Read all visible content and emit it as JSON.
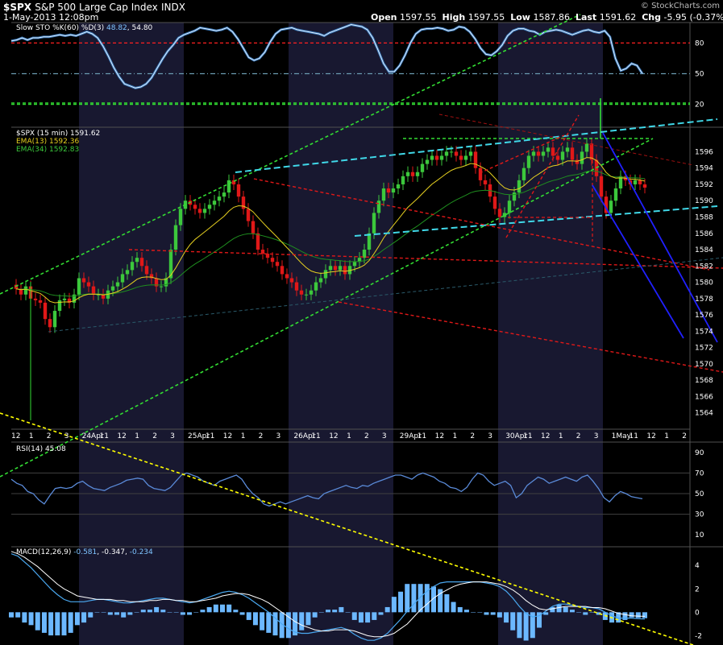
{
  "header": {
    "symbol": "$SPX",
    "name": "S&P 500 Large Cap Index",
    "exchange": "INDX",
    "datetime": "1-May-2013 12:08pm",
    "open_label": "Open",
    "open": "1597.55",
    "high_label": "High",
    "high": "1597.55",
    "low_label": "Low",
    "low": "1587.86",
    "last_label": "Last",
    "last": "1591.62",
    "chg_label": "Chg",
    "chg": "-5.95 (-0.37%)",
    "chg_arrow": "▼",
    "credit": "© StockCharts.com"
  },
  "colors": {
    "background": "#000000",
    "session_shade": "#181830",
    "panel_border": "#505050",
    "up_candle": "#3cc83c",
    "down_candle": "#e01818",
    "ema13": "#e6d020",
    "ema34": "#1f8f1f",
    "sto_line": "#7ec4ff",
    "trend_green": "#33dd33",
    "trend_red": "#e01818",
    "trend_cyan": "#40d8e8",
    "trend_blue": "#2020ff",
    "trend_yellow": "#ffff00",
    "rsi_line": "#5a8ad8",
    "macd_hist": "#6cb8ff"
  },
  "chart_data": [
    {
      "type": "line",
      "panel": "stochastic",
      "legend": "Slow STO %K(60) %D(3)",
      "k_value": "48.82",
      "d_value": "54.80",
      "ylim": [
        0,
        100
      ],
      "yticks": [
        80,
        50,
        20
      ],
      "reference_lines": [
        {
          "value": 80,
          "color": "#ff2020",
          "style": "dashed"
        },
        {
          "value": 50,
          "color": "#6a9ab0",
          "style": "dashdot"
        },
        {
          "value": 20,
          "color": "#33dd33",
          "style": "dashed"
        }
      ],
      "series": [
        {
          "values": [
            82,
            83,
            85,
            83,
            85,
            85,
            86,
            86,
            87,
            88,
            87,
            88,
            87,
            89,
            91,
            89,
            85,
            77,
            67,
            56,
            47,
            40,
            38,
            36,
            37,
            40,
            46,
            55,
            64,
            72,
            78,
            85,
            88,
            90,
            92,
            95,
            94,
            93,
            92,
            93,
            95,
            91,
            84,
            75,
            66,
            63,
            65,
            71,
            81,
            89,
            93,
            94,
            95,
            93,
            92,
            91,
            90,
            89,
            87,
            90,
            92,
            94,
            96,
            98,
            97,
            96,
            93,
            85,
            73,
            60,
            52,
            52,
            58,
            68,
            80,
            89,
            93,
            94,
            94,
            95,
            94,
            92,
            93,
            96,
            95,
            91,
            84,
            75,
            69,
            68,
            72,
            78,
            87,
            92,
            94,
            94,
            92,
            91,
            88,
            91,
            92,
            93,
            92,
            90,
            88,
            90,
            92,
            93,
            91,
            90,
            92,
            86,
            65,
            53,
            55,
            60,
            58,
            50
          ]
        }
      ]
    },
    {
      "type": "bar",
      "subtype": "candlestick",
      "panel": "price",
      "legend": "$SPX (15 min) 1591.62",
      "overlays": [
        {
          "name": "EMA(13)",
          "value": "1592.36"
        },
        {
          "name": "EMA(34)",
          "value": "1592.83"
        }
      ],
      "ylim": [
        1562,
        1599
      ],
      "yticks": [
        1564,
        1566,
        1568,
        1570,
        1572,
        1574,
        1576,
        1578,
        1580,
        1582,
        1584,
        1586,
        1588,
        1590,
        1592,
        1594,
        1596
      ],
      "x_tick_labels": [
        "12",
        "1",
        "2",
        "3",
        "24Apr",
        "11",
        "12",
        "1",
        "2",
        "3",
        "25Apr",
        "11",
        "12",
        "1",
        "2",
        "3",
        "26Apr",
        "11",
        "12",
        "1",
        "2",
        "3",
        "29Apr",
        "11",
        "12",
        "1",
        "2",
        "3",
        "30Apr",
        "11",
        "12",
        "1",
        "2",
        "3",
        "1May",
        "11",
        "12",
        "1",
        "2"
      ],
      "close": [
        1579.2,
        1578.5,
        1579.5,
        1578.0,
        1577.8,
        1577.5,
        1575.5,
        1574.5,
        1576.5,
        1577.8,
        1578.0,
        1577.5,
        1578.5,
        1580.5,
        1580.0,
        1579.5,
        1578.5,
        1578.5,
        1578.0,
        1579.0,
        1579.5,
        1580.0,
        1581.0,
        1581.5,
        1582.5,
        1583.0,
        1582.0,
        1581.0,
        1580.5,
        1579.5,
        1579.5,
        1580.5,
        1584.0,
        1587.0,
        1589.0,
        1590.0,
        1589.5,
        1589.0,
        1588.5,
        1589.0,
        1589.5,
        1590.0,
        1590.5,
        1591.0,
        1592.5,
        1592.0,
        1590.5,
        1589.0,
        1587.5,
        1586.0,
        1584.0,
        1583.5,
        1583.0,
        1582.5,
        1582.0,
        1581.0,
        1580.5,
        1580.0,
        1579.0,
        1578.5,
        1578.5,
        1579.0,
        1580.0,
        1580.5,
        1581.5,
        1582.0,
        1581.5,
        1582.0,
        1581.0,
        1582.0,
        1582.5,
        1583.0,
        1584.0,
        1586.0,
        1588.5,
        1590.0,
        1591.5,
        1591.0,
        1591.5,
        1592.0,
        1593.0,
        1593.5,
        1593.0,
        1593.5,
        1594.5,
        1595.0,
        1595.5,
        1595.0,
        1595.5,
        1596.0,
        1596.0,
        1595.5,
        1595.0,
        1595.5,
        1596.0,
        1594.0,
        1592.5,
        1592.0,
        1590.5,
        1589.0,
        1588.0,
        1588.5,
        1590.0,
        1591.0,
        1592.5,
        1594.0,
        1595.5,
        1596.0,
        1595.5,
        1596.0,
        1596.5,
        1595.5,
        1595.0,
        1596.0,
        1596.5,
        1595.0,
        1594.5,
        1596.0,
        1597.0,
        1595.0,
        1593.0,
        1590.5,
        1588.5,
        1590.0,
        1591.5,
        1593.0,
        1592.5,
        1592.0,
        1592.5,
        1592.0,
        1591.6
      ]
    },
    {
      "type": "line",
      "panel": "rsi",
      "legend": "RSI(14) 45.08",
      "ylim": [
        0,
        100
      ],
      "yticks": [
        90,
        70,
        50,
        30,
        10
      ],
      "series": [
        {
          "values": [
            64,
            60,
            58,
            52,
            50,
            44,
            40,
            48,
            55,
            56,
            55,
            56,
            60,
            62,
            58,
            55,
            54,
            53,
            56,
            58,
            60,
            63,
            64,
            65,
            64,
            58,
            55,
            54,
            53,
            56,
            62,
            68,
            70,
            68,
            66,
            62,
            60,
            58,
            62,
            64,
            66,
            68,
            64,
            56,
            50,
            46,
            40,
            38,
            40,
            42,
            40,
            42,
            44,
            46,
            48,
            46,
            45,
            50,
            52,
            54,
            56,
            58,
            56,
            55,
            58,
            57,
            60,
            62,
            64,
            66,
            68,
            68,
            66,
            64,
            68,
            70,
            68,
            66,
            62,
            60,
            56,
            55,
            52,
            56,
            64,
            70,
            68,
            62,
            58,
            60,
            62,
            58,
            46,
            50,
            58,
            62,
            66,
            64,
            60,
            62,
            64,
            66,
            64,
            62,
            66,
            68,
            62,
            55,
            46,
            42,
            48,
            52,
            50,
            47,
            46,
            45
          ]
        }
      ]
    },
    {
      "type": "line",
      "panel": "macd",
      "legend": "MACD(12,26,9)",
      "macd_value": "-0.581",
      "signal_value": "-0.347",
      "hist_value": "-0.234",
      "ylim": [
        -2.8,
        5.6
      ],
      "yticks": [
        4,
        2,
        0,
        -2
      ],
      "series": [
        {
          "name": "MACD(12,26,9)",
          "values": [
            5.0,
            4.8,
            4.3,
            3.8,
            3.2,
            2.6,
            2.0,
            1.5,
            1.1,
            0.9,
            0.9,
            0.9,
            1.0,
            1.1,
            1.1,
            1.0,
            0.9,
            0.8,
            0.8,
            0.9,
            1.0,
            1.1,
            1.2,
            1.2,
            1.1,
            1.0,
            0.9,
            0.8,
            0.9,
            1.1,
            1.3,
            1.5,
            1.7,
            1.8,
            1.7,
            1.5,
            1.2,
            0.8,
            0.4,
            0.0,
            -0.5,
            -1.0,
            -1.4,
            -1.7,
            -1.8,
            -1.8,
            -1.7,
            -1.6,
            -1.5,
            -1.4,
            -1.3,
            -1.5,
            -1.9,
            -2.2,
            -2.4,
            -2.4,
            -2.2,
            -1.8,
            -1.2,
            -0.6,
            0.1,
            0.7,
            1.3,
            1.8,
            2.2,
            2.5,
            2.6,
            2.6,
            2.6,
            2.6,
            2.6,
            2.6,
            2.5,
            2.4,
            2.2,
            1.8,
            1.2,
            0.5,
            -0.1,
            -0.4,
            -0.3,
            0.1,
            0.5,
            0.7,
            0.7,
            0.6,
            0.5,
            0.4,
            0.4,
            0.3,
            0.0,
            -0.3,
            -0.5,
            -0.5,
            -0.5,
            -0.55,
            -0.58
          ]
        },
        {
          "name": "Signal",
          "values": [
            5.2,
            5.0,
            4.7,
            4.3,
            3.9,
            3.4,
            2.9,
            2.4,
            2.0,
            1.7,
            1.4,
            1.3,
            1.2,
            1.1,
            1.1,
            1.1,
            1.0,
            1.0,
            0.9,
            0.9,
            0.9,
            1.0,
            1.0,
            1.1,
            1.1,
            1.0,
            1.0,
            0.9,
            0.9,
            1.0,
            1.1,
            1.2,
            1.4,
            1.5,
            1.6,
            1.6,
            1.5,
            1.3,
            1.1,
            0.8,
            0.4,
            0.0,
            -0.4,
            -0.8,
            -1.1,
            -1.3,
            -1.5,
            -1.6,
            -1.6,
            -1.5,
            -1.5,
            -1.5,
            -1.6,
            -1.8,
            -2.0,
            -2.1,
            -2.1,
            -2.0,
            -1.8,
            -1.4,
            -1.0,
            -0.4,
            0.2,
            0.7,
            1.2,
            1.6,
            1.9,
            2.2,
            2.4,
            2.5,
            2.6,
            2.6,
            2.6,
            2.5,
            2.4,
            2.2,
            1.9,
            1.5,
            1.0,
            0.6,
            0.3,
            0.2,
            0.3,
            0.4,
            0.5,
            0.5,
            0.5,
            0.5,
            0.4,
            0.4,
            0.3,
            0.1,
            -0.1,
            -0.2,
            -0.3,
            -0.33,
            -0.35
          ]
        }
      ]
    }
  ]
}
